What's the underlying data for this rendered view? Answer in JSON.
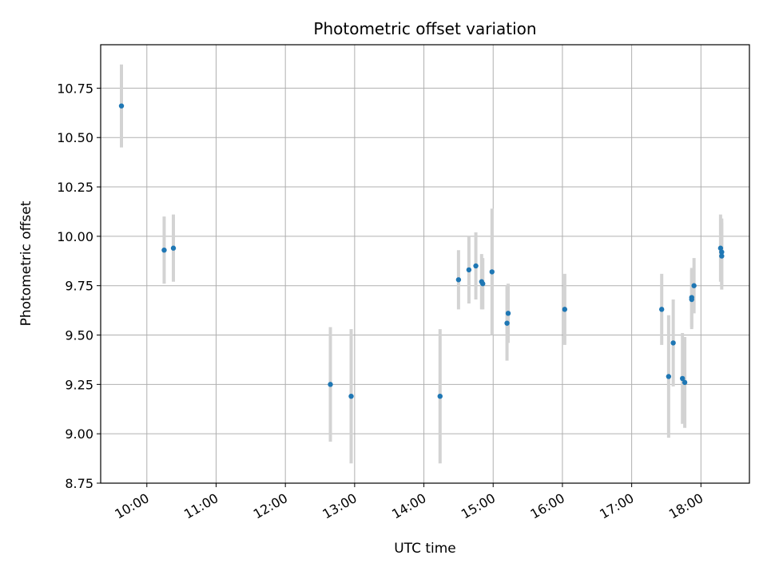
{
  "chart_data": {
    "type": "scatter",
    "title": "Photometric offset variation",
    "xlabel": "UTC time",
    "ylabel": "Photometric offset",
    "x_axis_kind": "time",
    "x_ticks": [
      "10:00",
      "11:00",
      "12:00",
      "13:00",
      "14:00",
      "15:00",
      "16:00",
      "17:00",
      "18:00"
    ],
    "y_ticks": [
      "8.75",
      "9.00",
      "9.25",
      "9.50",
      "9.75",
      "10.00",
      "10.25",
      "10.50",
      "10.75"
    ],
    "ylim": [
      8.75,
      10.97
    ],
    "xlim": [
      "09:20",
      "18:42"
    ],
    "grid": true,
    "colors": {
      "point": "#1f77b4",
      "errorbar": "#d3d3d3",
      "grid": "#b0b0b0"
    },
    "series": [
      {
        "points": [
          {
            "x": "09:38",
            "y": 10.66,
            "yerr": 0.21
          },
          {
            "x": "10:15",
            "y": 9.93,
            "yerr": 0.17
          },
          {
            "x": "10:23",
            "y": 9.94,
            "yerr": 0.17
          },
          {
            "x": "12:39",
            "y": 9.25,
            "yerr": 0.29
          },
          {
            "x": "12:57",
            "y": 9.19,
            "yerr": 0.34
          },
          {
            "x": "14:14",
            "y": 9.19,
            "yerr": 0.34
          },
          {
            "x": "14:30",
            "y": 9.78,
            "yerr": 0.15
          },
          {
            "x": "14:39",
            "y": 9.83,
            "yerr": 0.17
          },
          {
            "x": "14:45",
            "y": 9.85,
            "yerr": 0.17
          },
          {
            "x": "14:50",
            "y": 9.77,
            "yerr": 0.14
          },
          {
            "x": "14:51",
            "y": 9.76,
            "yerr": 0.13
          },
          {
            "x": "14:59",
            "y": 9.82,
            "yerr": 0.32
          },
          {
            "x": "15:12",
            "y": 9.56,
            "yerr": 0.19
          },
          {
            "x": "15:13",
            "y": 9.61,
            "yerr": 0.15
          },
          {
            "x": "16:02",
            "y": 9.63,
            "yerr": 0.18
          },
          {
            "x": "17:26",
            "y": 9.63,
            "yerr": 0.18
          },
          {
            "x": "17:32",
            "y": 9.29,
            "yerr": 0.31
          },
          {
            "x": "17:36",
            "y": 9.46,
            "yerr": 0.22
          },
          {
            "x": "17:44",
            "y": 9.28,
            "yerr": 0.23
          },
          {
            "x": "17:46",
            "y": 9.26,
            "yerr": 0.23
          },
          {
            "x": "17:52",
            "y": 9.69,
            "yerr": 0.15
          },
          {
            "x": "17:52",
            "y": 9.68,
            "yerr": 0.15
          },
          {
            "x": "17:54",
            "y": 9.75,
            "yerr": 0.14
          },
          {
            "x": "18:17",
            "y": 9.94,
            "yerr": 0.17
          },
          {
            "x": "18:18",
            "y": 9.92,
            "yerr": 0.17
          },
          {
            "x": "18:18",
            "y": 9.9,
            "yerr": 0.17
          }
        ]
      }
    ]
  }
}
